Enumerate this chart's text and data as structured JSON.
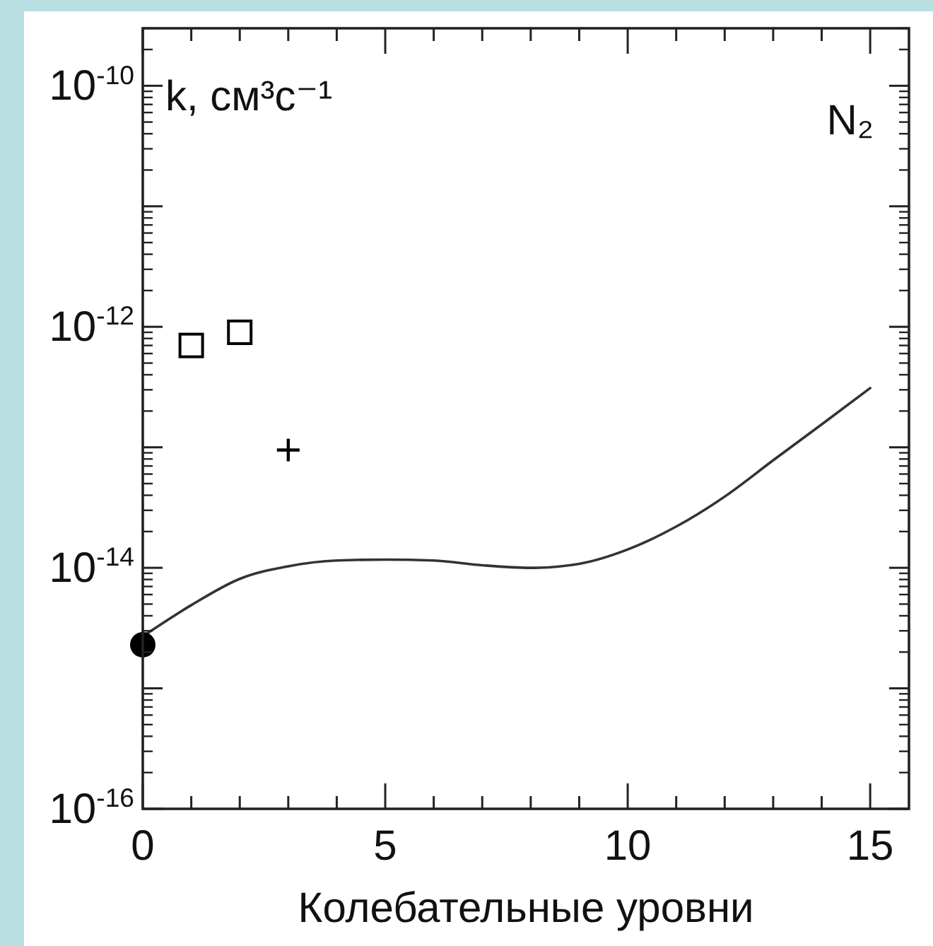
{
  "chart_data": {
    "type": "line",
    "ylabel": "k, см³с⁻¹",
    "xlabel": "Колебательные  уровни",
    "annotations": [
      "N₂"
    ],
    "log": "y",
    "grid": false,
    "xlim": [
      0,
      15.8
    ],
    "xticks": [
      0,
      {
        "value": 1,
        "label": null
      },
      {
        "value": 2,
        "label": null
      },
      {
        "value": 3,
        "label": null
      },
      {
        "value": 4,
        "label": null
      },
      5,
      {
        "value": 6,
        "label": null
      },
      {
        "value": 7,
        "label": null
      },
      {
        "value": 8,
        "label": null
      },
      {
        "value": 9,
        "label": null
      },
      10,
      {
        "value": 11,
        "label": null
      },
      {
        "value": 12,
        "label": null
      },
      {
        "value": 13,
        "label": null
      },
      {
        "value": 14,
        "label": null
      },
      15
    ],
    "ylim": [
      1e-16,
      3e-10
    ],
    "yticks": [
      {
        "value": 1e-16,
        "label": "10$^{-16}$"
      },
      {
        "value": 1e-15,
        "label": null
      },
      {
        "value": 1e-14,
        "label": "10$^{-14}$"
      },
      {
        "value": 1e-13,
        "label": null
      },
      {
        "value": 1e-12,
        "label": "10$^{-12}$"
      },
      {
        "value": 1e-11,
        "label": null
      },
      {
        "value": 1e-10,
        "label": "10$^{-10}$"
      }
    ],
    "series": [
      {
        "color": "#333333",
        "marker": "none",
        "line_style": "solid",
        "x": [
          0,
          1,
          2,
          3,
          4,
          5,
          6,
          7,
          8,
          9,
          10,
          11,
          12,
          13,
          14,
          15
        ],
        "values": [
          2.7e-15,
          4.9e-15,
          8.1e-15,
          1.03e-14,
          1.15e-14,
          1.17e-14,
          1.15e-14,
          1.05e-14,
          1e-14,
          1.08e-14,
          1.42e-14,
          2.2e-14,
          3.9e-14,
          7.8e-14,
          1.55e-13,
          3.1e-13
        ]
      },
      {
        "type": "scatter",
        "color": "#000000",
        "marker": "circle",
        "x": [
          0
        ],
        "values": [
          2.3e-15
        ]
      },
      {
        "type": "scatter",
        "color": "#000000",
        "marker": "square",
        "x": [
          1,
          2
        ],
        "values": [
          7e-13,
          9e-13
        ]
      },
      {
        "type": "scatter",
        "color": "#000000",
        "marker": "cross",
        "x": [
          3
        ],
        "values": [
          9.5e-14
        ]
      }
    ]
  }
}
